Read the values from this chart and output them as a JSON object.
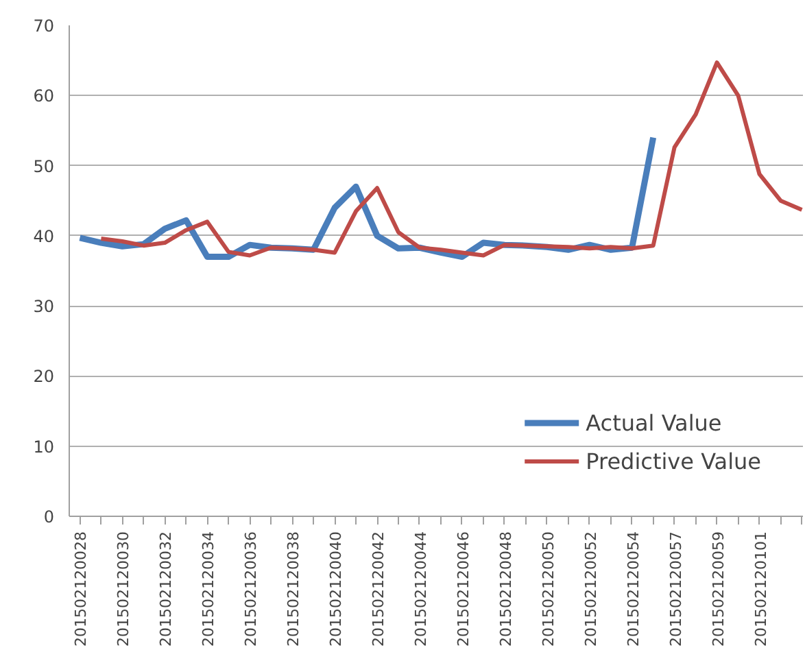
{
  "chart_data": {
    "type": "line",
    "categories": [
      "201502120028",
      null,
      "201502120030",
      null,
      "201502120032",
      null,
      "201502120034",
      null,
      "201502120036",
      null,
      "201502120038",
      null,
      "201502120040",
      null,
      "201502120042",
      null,
      "201502120044",
      null,
      "201502120046",
      null,
      "201502120048",
      null,
      "201502120050",
      null,
      "201502120052",
      null,
      "201502120054",
      null,
      "201502120057",
      null,
      "201502120059",
      null,
      "201502120101",
      null,
      null
    ],
    "series": [
      {
        "name": "Actual Value",
        "color": "#4a7ebb",
        "values": [
          39.7,
          39,
          38.5,
          38.8,
          41,
          42.2,
          37,
          37,
          38.7,
          38.3,
          38.2,
          38,
          44,
          47,
          40,
          38.2,
          38.3,
          37.6,
          37,
          39,
          38.7,
          38.6,
          38.4,
          38,
          38.7,
          38,
          38.3,
          54,
          null,
          null,
          null,
          null,
          null,
          null,
          null
        ]
      },
      {
        "name": "Predictive Value",
        "color": "#be4b48",
        "values": [
          null,
          39.6,
          39.2,
          38.6,
          39,
          40.8,
          42,
          37.7,
          37.2,
          38.3,
          38.2,
          38,
          37.6,
          43.5,
          46.8,
          40.5,
          38.3,
          38,
          37.6,
          37.2,
          38.7,
          38.6,
          38.5,
          38.4,
          38.2,
          38.4,
          38.2,
          38.6,
          52.6,
          57.3,
          64.7,
          60,
          48.8,
          45,
          43.7
        ]
      }
    ],
    "ylim": [
      0,
      70
    ],
    "yticks": [
      0,
      10,
      20,
      30,
      40,
      50,
      60,
      70
    ],
    "grid": "y",
    "legend": "bottom right",
    "marker": "none",
    "line_style": "solid"
  }
}
